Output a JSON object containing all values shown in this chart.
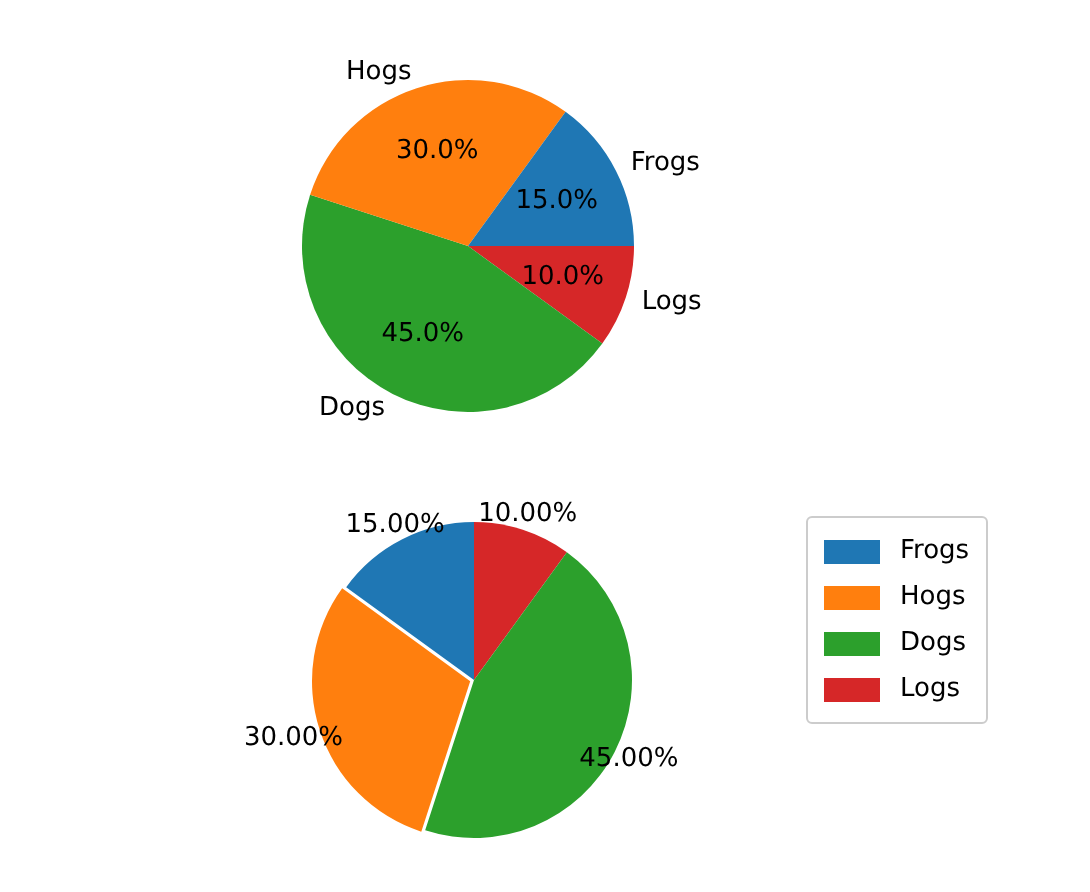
{
  "chart_data": [
    {
      "type": "pie",
      "categories": [
        "Frogs",
        "Hogs",
        "Dogs",
        "Logs"
      ],
      "values": [
        15,
        30,
        45,
        10
      ],
      "colors": [
        "#1f77b4",
        "#ff7f0e",
        "#2ca02c",
        "#d62728"
      ],
      "value_labels": [
        "15.0%",
        "30.0%",
        "45.0%",
        "10.0%"
      ],
      "legend": false
    },
    {
      "type": "pie",
      "categories": [
        "Frogs",
        "Hogs",
        "Dogs",
        "Logs"
      ],
      "values": [
        15,
        30,
        45,
        10
      ],
      "colors": [
        "#1f77b4",
        "#ff7f0e",
        "#2ca02c",
        "#d62728"
      ],
      "value_labels": [
        "15.00%",
        "30.00%",
        "45.00%",
        "10.00%"
      ],
      "legend": "right"
    }
  ]
}
